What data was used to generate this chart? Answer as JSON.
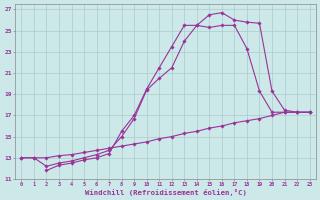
{
  "bg_color": "#cce8e8",
  "grid_color": "#aacccc",
  "line_color": "#993399",
  "marker_color": "#993399",
  "xlabel": "Windchill (Refroidissement éolien,°C)",
  "xlabel_color": "#993399",
  "tick_color": "#993399",
  "xlim": [
    -0.5,
    23.5
  ],
  "ylim": [
    11,
    27.5
  ],
  "yticks": [
    11,
    13,
    15,
    17,
    19,
    21,
    23,
    25,
    27
  ],
  "xticks": [
    0,
    1,
    2,
    3,
    4,
    5,
    6,
    7,
    8,
    9,
    10,
    11,
    12,
    13,
    14,
    15,
    16,
    17,
    18,
    19,
    20,
    21,
    22,
    23
  ],
  "curve1_x": [
    0,
    1,
    2,
    3,
    4,
    5,
    6,
    7,
    8,
    9,
    10,
    11,
    12,
    13,
    14,
    15,
    16,
    17,
    18,
    19,
    20,
    21,
    22,
    23
  ],
  "curve1_y": [
    13.0,
    13.0,
    12.2,
    12.5,
    12.7,
    13.0,
    13.3,
    13.7,
    15.0,
    16.7,
    19.4,
    20.5,
    21.5,
    24.0,
    25.5,
    26.5,
    26.7,
    26.0,
    25.8,
    25.7,
    19.3,
    17.5,
    17.3,
    17.3
  ],
  "curve2_x": [
    2,
    3,
    4,
    5,
    6,
    7,
    8,
    9,
    10,
    11,
    12,
    13,
    14,
    15,
    16,
    17,
    18,
    19,
    20,
    21,
    22,
    23
  ],
  "curve2_y": [
    11.8,
    12.3,
    12.5,
    12.8,
    13.0,
    13.4,
    15.5,
    17.0,
    19.5,
    21.5,
    23.5,
    25.5,
    25.5,
    25.3,
    25.5,
    25.5,
    23.3,
    19.3,
    17.3,
    17.3,
    17.3,
    17.3
  ],
  "curve3_x": [
    0,
    1,
    2,
    3,
    4,
    5,
    6,
    7,
    8,
    9,
    10,
    11,
    12,
    13,
    14,
    15,
    16,
    17,
    18,
    19,
    20,
    21,
    22,
    23
  ],
  "curve3_y": [
    13.0,
    13.0,
    13.0,
    13.2,
    13.3,
    13.5,
    13.7,
    13.9,
    14.1,
    14.3,
    14.5,
    14.8,
    15.0,
    15.3,
    15.5,
    15.8,
    16.0,
    16.3,
    16.5,
    16.7,
    17.0,
    17.3,
    17.3,
    17.3
  ]
}
